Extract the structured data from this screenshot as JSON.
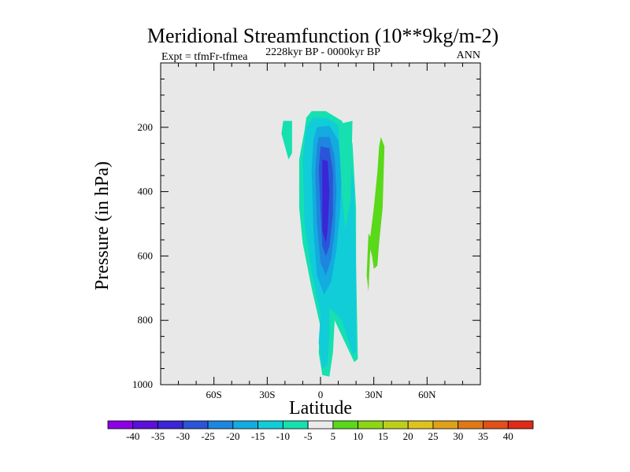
{
  "chart_data": {
    "type": "contour",
    "title": "Meridional Streamfunction (10**9kg/m-2)",
    "subtitle_left": "Expt = tfmFr-tfmea",
    "subtitle_center": "2228kyr BP - 0000kyr BP",
    "subtitle_right": "ANN",
    "xlabel": "Latitude",
    "ylabel": "Pressure (in hPa)",
    "x_ticks": [
      "60S",
      "30S",
      "0",
      "30N",
      "60N"
    ],
    "x_tick_values": [
      -60,
      -30,
      0,
      30,
      60
    ],
    "xlim": [
      -90,
      90
    ],
    "y_ticks": [
      "200",
      "400",
      "600",
      "800",
      "1000"
    ],
    "y_tick_values": [
      200,
      400,
      600,
      800,
      1000
    ],
    "ylim": [
      1000,
      0
    ],
    "colorbar": {
      "labels": [
        "-40",
        "-35",
        "-30",
        "-25",
        "-20",
        "-15",
        "-10",
        "-5",
        "5",
        "10",
        "15",
        "20",
        "25",
        "30",
        "35",
        "40"
      ],
      "colors": [
        "#8c00e6",
        "#5a10d8",
        "#3a26d4",
        "#2a55d8",
        "#1e86dd",
        "#13abe0",
        "#10cdd8",
        "#16e0b0",
        "#eaeaea",
        "#5ad81a",
        "#8cd616",
        "#bcd01a",
        "#dcc31e",
        "#e0a018",
        "#e07818",
        "#e05018",
        "#e02a18"
      ]
    },
    "background_color": "#e8e8e8",
    "regions": [
      {
        "name": "region-main-negative-outer",
        "level": -5,
        "color": "#16e0b0",
        "points": [
          [
            -5,
            150
          ],
          [
            3,
            150
          ],
          [
            12,
            180
          ],
          [
            18,
            250
          ],
          [
            19,
            350
          ],
          [
            20,
            450
          ],
          [
            20,
            620
          ],
          [
            21,
            920
          ],
          [
            19,
            930
          ],
          [
            13,
            860
          ],
          [
            8,
            800
          ],
          [
            7,
            900
          ],
          [
            5,
            975
          ],
          [
            1,
            970
          ],
          [
            -1,
            900
          ],
          [
            0,
            820
          ],
          [
            -5,
            700
          ],
          [
            -10,
            560
          ],
          [
            -12,
            450
          ],
          [
            -12,
            300
          ],
          [
            -9,
            210
          ],
          [
            -8,
            170
          ]
        ]
      },
      {
        "name": "region-main-negative-mid",
        "level": -10,
        "color": "#10cdd8",
        "points": [
          [
            -4,
            170
          ],
          [
            4,
            172
          ],
          [
            12,
            200
          ],
          [
            17,
            290
          ],
          [
            19,
            400
          ],
          [
            20,
            620
          ],
          [
            20,
            900
          ],
          [
            18,
            905
          ],
          [
            12,
            800
          ],
          [
            5,
            760
          ],
          [
            5,
            850
          ],
          [
            4,
            940
          ],
          [
            1,
            950
          ],
          [
            -1,
            870
          ],
          [
            0,
            780
          ],
          [
            -5,
            650
          ],
          [
            -9,
            500
          ],
          [
            -10,
            300
          ],
          [
            -8,
            200
          ]
        ]
      },
      {
        "name": "region-core-minus15",
        "level": -15,
        "color": "#13abe0",
        "points": [
          [
            -2,
            200
          ],
          [
            5,
            195
          ],
          [
            10,
            240
          ],
          [
            12,
            330
          ],
          [
            11,
            460
          ],
          [
            9,
            580
          ],
          [
            6,
            680
          ],
          [
            2,
            720
          ],
          [
            -2,
            660
          ],
          [
            -4,
            520
          ],
          [
            -5,
            330
          ],
          [
            -4,
            240
          ]
        ]
      },
      {
        "name": "region-core-minus20",
        "level": -20,
        "color": "#1e86dd",
        "points": [
          [
            -1,
            230
          ],
          [
            5,
            230
          ],
          [
            8,
            290
          ],
          [
            9,
            400
          ],
          [
            8,
            520
          ],
          [
            6,
            610
          ],
          [
            3,
            660
          ],
          [
            0,
            620
          ],
          [
            -2,
            500
          ],
          [
            -3,
            340
          ],
          [
            -2,
            260
          ]
        ]
      },
      {
        "name": "region-core-minus25",
        "level": -25,
        "color": "#2a55d8",
        "points": [
          [
            0,
            260
          ],
          [
            5,
            265
          ],
          [
            7,
            340
          ],
          [
            7,
            470
          ],
          [
            5,
            570
          ],
          [
            3,
            600
          ],
          [
            1,
            570
          ],
          [
            0,
            460
          ],
          [
            -1,
            330
          ]
        ]
      },
      {
        "name": "region-core-minus30",
        "level": -30,
        "color": "#3a26d4",
        "points": [
          [
            1,
            300
          ],
          [
            4,
            305
          ],
          [
            5,
            400
          ],
          [
            4,
            520
          ],
          [
            3,
            560
          ],
          [
            1,
            520
          ],
          [
            1,
            400
          ]
        ]
      },
      {
        "name": "region-north-stripe",
        "level": -5,
        "color": "#16e0b0",
        "points": [
          [
            10,
            190
          ],
          [
            18,
            180
          ],
          [
            17,
            420
          ],
          [
            14,
            520
          ],
          [
            12,
            400
          ],
          [
            11,
            300
          ]
        ]
      },
      {
        "name": "region-left-blob",
        "level": -5,
        "color": "#16e0b0",
        "points": [
          [
            -21,
            180
          ],
          [
            -16,
            180
          ],
          [
            -16,
            280
          ],
          [
            -18,
            300
          ],
          [
            -20,
            260
          ],
          [
            -22,
            220
          ]
        ]
      },
      {
        "name": "region-positive-strip",
        "level": 5,
        "color": "#5ad81a",
        "points": [
          [
            34,
            230
          ],
          [
            36,
            260
          ],
          [
            35,
            450
          ],
          [
            33,
            560
          ],
          [
            32,
            630
          ],
          [
            30,
            640
          ],
          [
            29,
            600
          ],
          [
            28,
            580
          ],
          [
            27,
            710
          ],
          [
            26,
            660
          ],
          [
            27,
            530
          ],
          [
            28,
            540
          ],
          [
            30,
            450
          ],
          [
            32,
            340
          ],
          [
            33,
            260
          ]
        ]
      }
    ]
  }
}
